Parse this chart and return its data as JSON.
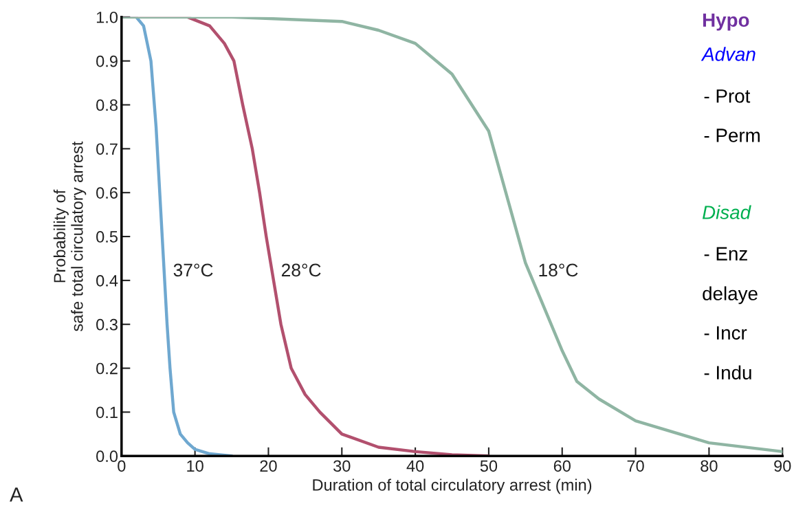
{
  "chart_data": {
    "type": "line",
    "xlabel": "Duration of total circulatory arrest (min)",
    "ylabel": "Probability of\nsafe total circulatory arrest",
    "xlim": [
      0,
      90
    ],
    "xticks": [
      0,
      10,
      20,
      30,
      40,
      50,
      60,
      70,
      80,
      90
    ],
    "ylim": [
      0,
      1
    ],
    "yticks": [
      {
        "value": 0,
        "label": "0.0"
      },
      {
        "value": 0.1,
        "label": "0.1"
      },
      {
        "value": 0.2,
        "label": "0.2"
      },
      {
        "value": 0.3,
        "label": "0.3"
      },
      {
        "value": 0.4,
        "label": "0.4"
      },
      {
        "value": 0.5,
        "label": "0.5"
      },
      {
        "value": 0.6,
        "label": "0.6"
      },
      {
        "value": 0.7,
        "label": "0.7"
      },
      {
        "value": 0.8,
        "label": "0.8"
      },
      {
        "value": 0.9,
        "label": "0.9"
      },
      {
        "value": 1,
        "label": "1.0"
      }
    ],
    "grid": false,
    "legend": false,
    "marker": "none",
    "line_style": "solid",
    "series": [
      {
        "name": "37°C",
        "color": "#6fa8d0",
        "x": [
          0,
          2,
          3,
          4,
          4.7,
          5.2,
          5.7,
          6.2,
          6.6,
          7.1,
          8,
          9,
          10,
          12,
          15
        ],
        "values": [
          1,
          1,
          0.98,
          0.9,
          0.75,
          0.6,
          0.45,
          0.3,
          0.2,
          0.1,
          0.05,
          0.03,
          0.015,
          0.005,
          0
        ]
      },
      {
        "name": "28°C",
        "color": "#b2506e",
        "x": [
          0,
          9,
          12,
          14,
          15.3,
          16.5,
          17.8,
          18.8,
          19.7,
          20.7,
          21.7,
          23.1,
          25,
          27,
          30,
          35,
          40,
          45,
          50
        ],
        "values": [
          1,
          1,
          0.98,
          0.94,
          0.9,
          0.8,
          0.7,
          0.6,
          0.5,
          0.4,
          0.3,
          0.2,
          0.14,
          0.1,
          0.05,
          0.02,
          0.01,
          0.003,
          0
        ]
      },
      {
        "name": "18°C",
        "color": "#8fb5a3",
        "x": [
          0,
          15,
          30,
          35,
          40,
          45,
          50,
          55,
          57,
          60,
          62,
          65,
          70,
          80,
          90
        ],
        "values": [
          1,
          1,
          0.99,
          0.97,
          0.94,
          0.87,
          0.74,
          0.44,
          0.36,
          0.24,
          0.17,
          0.13,
          0.08,
          0.03,
          0.01
        ]
      }
    ],
    "annotations": [
      "A",
      "Hypo",
      "Advan",
      "- Prot",
      "- Perm",
      "Disad",
      "- Enz",
      "delaye",
      "- Incr",
      "- Indu"
    ]
  }
}
